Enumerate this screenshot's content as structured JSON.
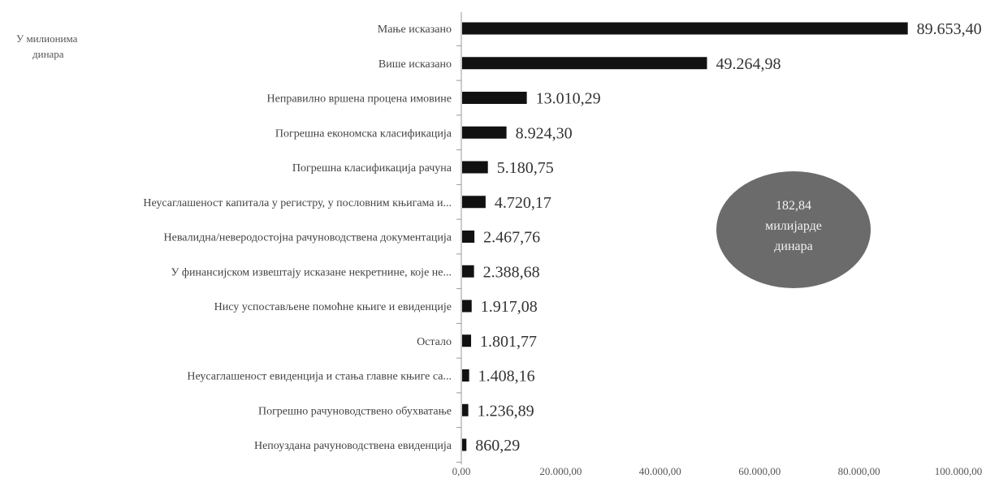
{
  "unit_label": {
    "line1": "У милионима",
    "line2": "динара"
  },
  "total_badge": {
    "line1": "182,84",
    "line2": "милијарде",
    "line3": "динара",
    "color": "#6b6b6b"
  },
  "chart_data": {
    "type": "bar",
    "orientation": "horizontal",
    "title": "",
    "xlabel": "",
    "ylabel": "",
    "xlim": [
      0,
      100000
    ],
    "bar_color": "#111111",
    "categories": [
      "Мање исказано",
      "Више исказано",
      "Неправилно вршена процена имовине",
      "Погрешна економска класификација",
      "Погрешна класификација рачуна",
      "Неусаглашеност капитала у регистру, у пословним књигама и...",
      "Невалидна/неверодостојна рачуноводствена документација",
      "У финансијском извештају исказане некретнине, које не...",
      "Нису успостављене помоћне књиге и евиденције",
      "Остало",
      "Неусаглашеност евиденција и стања главне књиге са...",
      "Погрешно рачуноводствено обухватање",
      "Непоуздана рачуноводствена евиденција"
    ],
    "values": [
      89653.4,
      49264.98,
      13010.29,
      8924.3,
      5180.75,
      4720.17,
      2467.76,
      2388.68,
      1917.08,
      1801.77,
      1408.16,
      1236.89,
      860.29
    ],
    "value_labels": [
      "89.653,40",
      "49.264,98",
      "13.010,29",
      "8.924,30",
      "5.180,75",
      "4.720,17",
      "2.467,76",
      "2.388,68",
      "1.917,08",
      "1.801,77",
      "1.408,16",
      "1.236,89",
      "860,29"
    ],
    "x_ticks": [
      0,
      20000,
      40000,
      60000,
      80000,
      100000
    ],
    "x_tick_labels": [
      "0,00",
      "20.000,00",
      "40.000,00",
      "60.000,00",
      "80.000,00",
      "100.000,00"
    ],
    "grid": false,
    "legend": "none"
  }
}
